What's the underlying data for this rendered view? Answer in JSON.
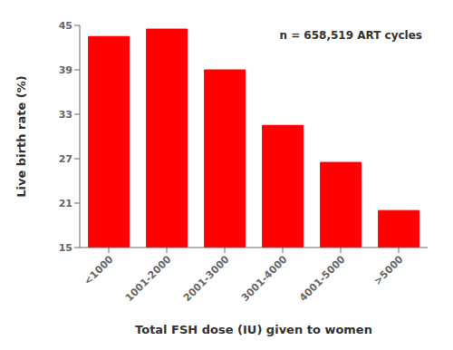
{
  "chart_data": {
    "type": "bar",
    "categories": [
      "<1000",
      "1001-2000",
      "2001-3000",
      "3001-4000",
      "4001-5000",
      ">5000"
    ],
    "values": [
      43.5,
      44.5,
      39.0,
      31.5,
      26.5,
      20.0
    ],
    "color": "#FF0000",
    "xlabel": "Total FSH dose (IU) given to women",
    "ylabel": "Live birth rate (%)",
    "annotation": "n = 658,519 ART cycles",
    "ylim": [
      15,
      45
    ],
    "yticks": [
      15,
      21,
      27,
      33,
      39,
      45
    ],
    "grid": false
  }
}
